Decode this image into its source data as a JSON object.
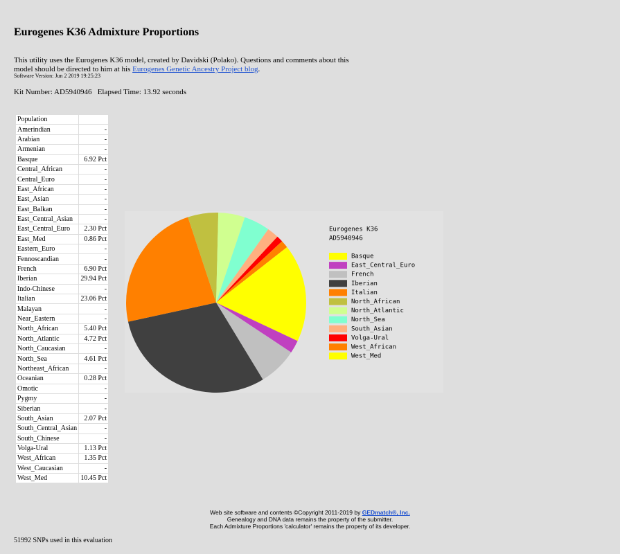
{
  "header": {
    "title": "Eurogenes K36 Admixture Proportions",
    "intro_before": "This utility uses the Eurogenes K36 model, created by Davidski (Polako). Questions and comments about this model should be directed to him at his",
    "intro_link": "Eurogenes Genetic Ancestry Project blog",
    "intro_after": ".",
    "software_version": "Software Version: Jun 2 2019 19:25:23",
    "kit_number": "Kit Number: AD5940946",
    "elapsed_time": "Elapsed Time: 13.92 seconds"
  },
  "table": {
    "header": "Population",
    "rows": [
      [
        "Amerindian",
        "-"
      ],
      [
        "Arabian",
        "-"
      ],
      [
        "Armenian",
        "-"
      ],
      [
        "Basque",
        "6.92 Pct"
      ],
      [
        "Central_African",
        "-"
      ],
      [
        "Central_Euro",
        "-"
      ],
      [
        "East_African",
        "-"
      ],
      [
        "East_Asian",
        "-"
      ],
      [
        "East_Balkan",
        "-"
      ],
      [
        "East_Central_Asian",
        "-"
      ],
      [
        "East_Central_Euro",
        "2.30 Pct"
      ],
      [
        "East_Med",
        "0.86 Pct"
      ],
      [
        "Eastern_Euro",
        "-"
      ],
      [
        "Fennoscandian",
        "-"
      ],
      [
        "French",
        "6.90 Pct"
      ],
      [
        "Iberian",
        "29.94 Pct"
      ],
      [
        "Indo-Chinese",
        "-"
      ],
      [
        "Italian",
        "23.06 Pct"
      ],
      [
        "Malayan",
        "-"
      ],
      [
        "Near_Eastern",
        "-"
      ],
      [
        "North_African",
        "5.40 Pct"
      ],
      [
        "North_Atlantic",
        "4.72 Pct"
      ],
      [
        "North_Caucasian",
        "-"
      ],
      [
        "North_Sea",
        "4.61 Pct"
      ],
      [
        "Northeast_African",
        "-"
      ],
      [
        "Oceanian",
        "0.28 Pct"
      ],
      [
        "Omotic",
        "-"
      ],
      [
        "Pygmy",
        "-"
      ],
      [
        "Siberian",
        "-"
      ],
      [
        "South_Asian",
        "2.07 Pct"
      ],
      [
        "South_Central_Asian",
        "-"
      ],
      [
        "South_Chinese",
        "-"
      ],
      [
        "Volga-Ural",
        "1.13 Pct"
      ],
      [
        "West_African",
        "1.35 Pct"
      ],
      [
        "West_Caucasian",
        "-"
      ],
      [
        "West_Med",
        "10.45 Pct"
      ]
    ]
  },
  "chart_data": {
    "type": "pie",
    "title": [
      "Eurogenes K36",
      "AD5940946"
    ],
    "categories": [
      "Basque",
      "East_Central_Euro",
      "French",
      "Iberian",
      "Italian",
      "North_African",
      "North_Atlantic",
      "North_Sea",
      "South_Asian",
      "Volga-Ural",
      "West_African",
      "West_Med"
    ],
    "values": [
      6.92,
      2.3,
      6.9,
      29.94,
      23.06,
      5.4,
      4.72,
      4.61,
      2.07,
      1.13,
      1.35,
      10.45
    ],
    "colors": [
      "#ffff00",
      "#c040c0",
      "#c0c0c0",
      "#404040",
      "#ff8000",
      "#c0c040",
      "#d0ff90",
      "#80ffd0",
      "#ffb080",
      "#ff0000",
      "#ff8000",
      "#ffff00"
    ]
  },
  "footer": {
    "line1": "Web site software and contents ©Copyright 2011-2019 by",
    "link": "GEDmatch®, Inc.",
    "line2": "Genealogy and DNA data remains the property of the submitter.",
    "line3": "Each Admixture Proportions 'calculator' remains the property of its developer.",
    "snps": "51992 SNPs used in this evaluation"
  }
}
